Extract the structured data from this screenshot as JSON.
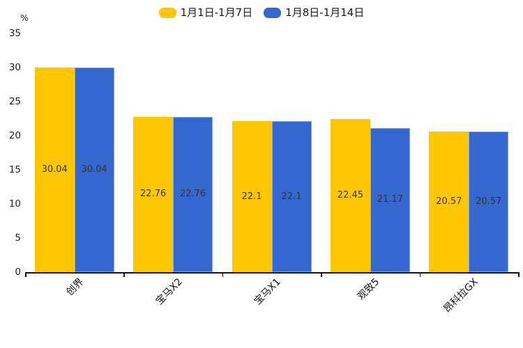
{
  "chart_data": {
    "type": "bar",
    "title": "",
    "xlabel": "",
    "ylabel": "%",
    "categories": [
      "创界",
      "宝马X2",
      "宝马X1",
      "观致5",
      "昂科拉GX"
    ],
    "series": [
      {
        "name": "1月1日-1月7日",
        "color": "#FEC701",
        "values": [
          30.04,
          22.76,
          22.1,
          22.45,
          20.57
        ],
        "labels": [
          "30.04",
          "22.76",
          "22.1",
          "22.45",
          "20.57"
        ]
      },
      {
        "name": "1月8日-1月14日",
        "color": "#3568CE",
        "border_color": "#8CA3E6",
        "values": [
          30.04,
          22.76,
          22.1,
          21.17,
          20.57
        ],
        "labels": [
          "30.04",
          "22.76",
          "22.1",
          "21.17",
          "20.57"
        ]
      }
    ],
    "ylim": [
      0,
      35
    ],
    "ytick_interval": 5,
    "yticks": [
      0,
      5,
      10,
      15,
      20,
      25,
      30,
      35
    ],
    "grid": false,
    "legend_position": "top",
    "value_labels": "inside-center",
    "category_label_rotation_deg": -45,
    "axis_color": "#111111",
    "text_color": "#222222"
  }
}
